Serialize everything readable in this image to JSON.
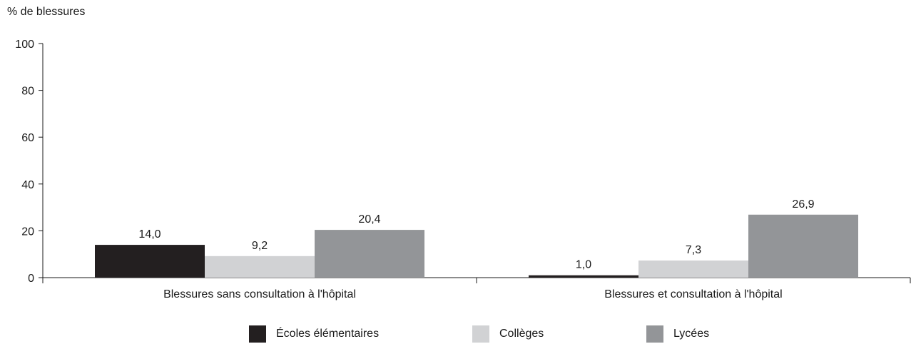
{
  "chart_data": {
    "type": "bar",
    "ylabel": "% de blessures",
    "ylim": [
      0,
      100
    ],
    "yticks": [
      0,
      20,
      40,
      60,
      80,
      100
    ],
    "categories": [
      "Blessures sans consultation à l'hôpital",
      "Blessures et consultation à l'hôpital"
    ],
    "series": [
      {
        "name": "Écoles élémentaires",
        "color": "#231f20",
        "values": [
          14.0,
          1.0
        ],
        "labels": [
          "14,0",
          "1,0"
        ]
      },
      {
        "name": "Collèges",
        "color": "#d1d2d4",
        "values": [
          9.2,
          7.3
        ],
        "labels": [
          "9,2",
          "7,3"
        ]
      },
      {
        "name": "Lycées",
        "color": "#939598",
        "values": [
          20.4,
          26.9
        ],
        "labels": [
          "20,4",
          "26,9"
        ]
      }
    ],
    "grid": false,
    "legend_position": "bottom"
  }
}
